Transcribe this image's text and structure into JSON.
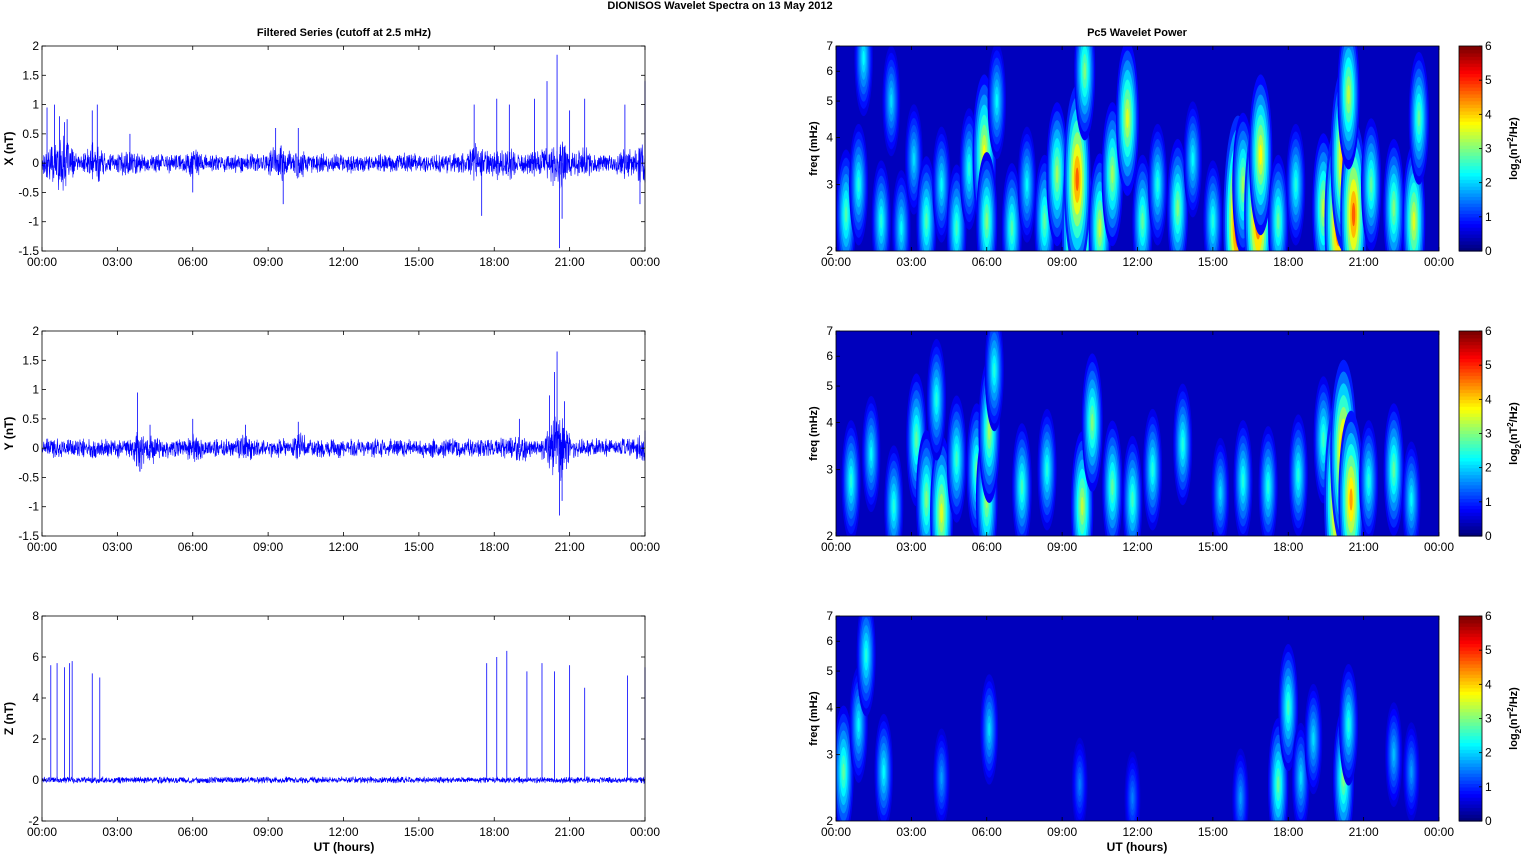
{
  "figure": {
    "title": "DIONISOS Wavelet Spectra on 13 May       2012",
    "left_title": "Filtered Series (cutoff at 2.5 mHz)",
    "right_title": "Pc5 Wavelet Power",
    "xlabel": "UT (hours)",
    "colors": {
      "trace": "#0000ff",
      "background": "#00008f",
      "axes": "#000000"
    }
  },
  "chart_data": [
    {
      "type": "line",
      "title": "",
      "ylabel": "X (nT)",
      "xlabel": "",
      "x_ticks": [
        "00:00",
        "03:00",
        "06:00",
        "09:00",
        "12:00",
        "15:00",
        "18:00",
        "21:00",
        "00:00"
      ],
      "x_range_hours": [
        0,
        24
      ],
      "ylim": [
        -1.5,
        2
      ],
      "y_ticks": [
        "-1.5",
        "-1",
        "-0.5",
        "0",
        "0.5",
        "1",
        "1.5",
        "2"
      ],
      "grid": false,
      "noise_amplitude": 0.12,
      "series": [
        {
          "x_hours": [
            0.2,
            0.5,
            0.7,
            0.9,
            1.0,
            2.0,
            2.2,
            3.5,
            6.0,
            9.3,
            9.6,
            10.2,
            17.5,
            17.2,
            18.1,
            18.6,
            19.6,
            20.1,
            20.5,
            20.6,
            20.7,
            21.0,
            21.6,
            23.2,
            23.8,
            24.0
          ],
          "values": [
            0.95,
            1.0,
            0.8,
            0.7,
            0.75,
            0.9,
            1.0,
            0.5,
            -0.5,
            0.6,
            -0.7,
            0.6,
            -0.9,
            1.0,
            1.1,
            1.0,
            1.1,
            1.4,
            1.85,
            -1.45,
            -0.95,
            0.9,
            1.1,
            1.0,
            -0.7,
            1.4
          ]
        }
      ]
    },
    {
      "type": "line",
      "title": "",
      "ylabel": "Y (nT)",
      "xlabel": "",
      "x_ticks": [
        "00:00",
        "03:00",
        "06:00",
        "09:00",
        "12:00",
        "15:00",
        "18:00",
        "21:00",
        "00:00"
      ],
      "x_range_hours": [
        0,
        24
      ],
      "ylim": [
        -1.5,
        2
      ],
      "y_ticks": [
        "-1.5",
        "-1",
        "-0.5",
        "0",
        "0.5",
        "1",
        "1.5",
        "2"
      ],
      "grid": false,
      "noise_amplitude": 0.12,
      "series": [
        {
          "x_hours": [
            3.8,
            3.9,
            4.3,
            6.0,
            8.1,
            10.2,
            19.0,
            20.2,
            20.4,
            20.5,
            20.6,
            20.7,
            20.8,
            24.0
          ],
          "values": [
            0.95,
            -0.4,
            0.4,
            0.5,
            0.4,
            0.45,
            0.5,
            0.9,
            1.3,
            1.65,
            -1.15,
            -0.9,
            0.8,
            0.3
          ]
        }
      ]
    },
    {
      "type": "line",
      "title": "",
      "ylabel": "Z (nT)",
      "xlabel": "UT (hours)",
      "x_ticks": [
        "00:00",
        "03:00",
        "06:00",
        "09:00",
        "12:00",
        "15:00",
        "18:00",
        "21:00",
        "00:00"
      ],
      "x_range_hours": [
        0,
        24
      ],
      "ylim": [
        -2,
        8
      ],
      "y_ticks": [
        "-2",
        "0",
        "2",
        "4",
        "6",
        "8"
      ],
      "grid": false,
      "noise_amplitude": 0.12,
      "series": [
        {
          "x_hours": [
            0.35,
            0.6,
            0.9,
            1.1,
            1.2,
            2.0,
            2.3,
            17.7,
            18.1,
            18.5,
            19.3,
            19.9,
            20.4,
            21.0,
            21.6,
            23.3,
            24.0
          ],
          "values": [
            5.6,
            5.7,
            5.5,
            5.7,
            5.8,
            5.2,
            5.0,
            5.7,
            6.0,
            6.3,
            5.3,
            5.7,
            5.3,
            5.6,
            4.5,
            5.1,
            5.5
          ]
        }
      ]
    },
    {
      "type": "heatmap",
      "title": "",
      "ylabel": "freq (mHz)",
      "xlabel": "",
      "x_ticks": [
        "00:00",
        "03:00",
        "06:00",
        "09:00",
        "12:00",
        "15:00",
        "18:00",
        "21:00",
        "00:00"
      ],
      "x_range_hours": [
        0,
        24
      ],
      "y_range_mHz": [
        2,
        7
      ],
      "y_scale": "log",
      "y_ticks": [
        "2",
        "3",
        "4",
        "5",
        "6",
        "7"
      ],
      "colorbar": {
        "label_base": "log",
        "label_sub": "2",
        "label_rest": "(nT",
        "label_sup": "2",
        "label_end": "/Hz)",
        "range": [
          0,
          6
        ],
        "ticks": [
          "0",
          "1",
          "2",
          "3",
          "4",
          "5",
          "6"
        ],
        "colormap": "jet"
      },
      "blobs_hours_mHz_power": [
        [
          0.4,
          2.5,
          2.5
        ],
        [
          0.9,
          3.0,
          2.2
        ],
        [
          1.1,
          6.5,
          2.0
        ],
        [
          1.8,
          2.4,
          2.2
        ],
        [
          2.2,
          5.0,
          1.8
        ],
        [
          2.6,
          2.3,
          2.0
        ],
        [
          3.1,
          3.5,
          1.8
        ],
        [
          3.6,
          2.4,
          2.5
        ],
        [
          4.2,
          3.0,
          2.0
        ],
        [
          4.8,
          2.3,
          2.4
        ],
        [
          5.3,
          3.3,
          2.2
        ],
        [
          5.9,
          3.6,
          3.6
        ],
        [
          6.0,
          2.4,
          2.8
        ],
        [
          6.4,
          5.0,
          2.0
        ],
        [
          7.0,
          2.3,
          2.5
        ],
        [
          7.6,
          3.0,
          2.0
        ],
        [
          8.3,
          2.4,
          2.6
        ],
        [
          8.8,
          3.2,
          3.0
        ],
        [
          9.6,
          2.3,
          5.7
        ],
        [
          9.6,
          3.1,
          4.6
        ],
        [
          9.9,
          6.0,
          2.8
        ],
        [
          10.5,
          2.3,
          3.2
        ],
        [
          11.0,
          3.2,
          3.0
        ],
        [
          11.6,
          4.5,
          3.4
        ],
        [
          12.2,
          2.4,
          2.6
        ],
        [
          12.8,
          3.0,
          2.2
        ],
        [
          13.6,
          2.6,
          2.8
        ],
        [
          14.2,
          3.5,
          2.0
        ],
        [
          15.0,
          2.4,
          2.2
        ],
        [
          16.0,
          2.4,
          5.4
        ],
        [
          16.2,
          3.0,
          3.0
        ],
        [
          16.8,
          2.5,
          5.0
        ],
        [
          16.9,
          3.6,
          3.6
        ],
        [
          17.6,
          2.4,
          2.6
        ],
        [
          18.3,
          3.0,
          2.2
        ],
        [
          19.4,
          2.6,
          3.2
        ],
        [
          20.0,
          2.4,
          5.0
        ],
        [
          20.2,
          3.5,
          4.4
        ],
        [
          20.6,
          2.5,
          4.6
        ],
        [
          20.4,
          5.2,
          3.2
        ],
        [
          21.3,
          3.0,
          2.6
        ],
        [
          22.2,
          2.6,
          2.8
        ],
        [
          23.0,
          2.4,
          3.4
        ],
        [
          23.2,
          4.5,
          2.6
        ]
      ]
    },
    {
      "type": "heatmap",
      "title": "",
      "ylabel": "freq (mHz)",
      "xlabel": "",
      "x_ticks": [
        "00:00",
        "03:00",
        "06:00",
        "09:00",
        "12:00",
        "15:00",
        "18:00",
        "21:00",
        "00:00"
      ],
      "x_range_hours": [
        0,
        24
      ],
      "y_range_mHz": [
        2,
        7
      ],
      "y_scale": "log",
      "y_ticks": [
        "2",
        "3",
        "4",
        "5",
        "6",
        "7"
      ],
      "colorbar": {
        "label_base": "log",
        "label_sub": "2",
        "label_rest": "(nT",
        "label_sup": "2",
        "label_end": "/Hz)",
        "range": [
          0,
          6
        ],
        "ticks": [
          "0",
          "1",
          "2",
          "3",
          "4",
          "5",
          "6"
        ],
        "colormap": "jet"
      },
      "blobs_hours_mHz_power": [
        [
          0.6,
          2.8,
          2.2
        ],
        [
          1.4,
          3.3,
          2.0
        ],
        [
          2.3,
          2.4,
          2.2
        ],
        [
          3.2,
          3.6,
          2.6
        ],
        [
          3.6,
          2.5,
          2.8
        ],
        [
          4.2,
          2.3,
          3.4
        ],
        [
          4.0,
          4.6,
          2.2
        ],
        [
          4.8,
          3.2,
          2.4
        ],
        [
          5.6,
          3.0,
          2.6
        ],
        [
          6.0,
          2.5,
          3.0
        ],
        [
          6.1,
          3.8,
          3.0
        ],
        [
          6.3,
          5.5,
          2.2
        ],
        [
          7.4,
          2.7,
          2.4
        ],
        [
          8.4,
          3.0,
          2.2
        ],
        [
          9.8,
          2.4,
          3.2
        ],
        [
          10.2,
          4.0,
          2.8
        ],
        [
          11.0,
          2.7,
          2.6
        ],
        [
          11.8,
          2.5,
          2.4
        ],
        [
          12.6,
          3.0,
          2.2
        ],
        [
          13.8,
          3.5,
          2.2
        ],
        [
          15.3,
          2.6,
          1.8
        ],
        [
          16.2,
          2.8,
          2.2
        ],
        [
          17.2,
          2.7,
          2.2
        ],
        [
          18.4,
          2.9,
          2.2
        ],
        [
          19.4,
          3.6,
          2.4
        ],
        [
          20.0,
          2.5,
          5.2
        ],
        [
          20.2,
          3.3,
          4.6
        ],
        [
          20.5,
          2.5,
          4.2
        ],
        [
          21.2,
          2.8,
          2.2
        ],
        [
          22.2,
          3.0,
          2.6
        ],
        [
          22.9,
          2.5,
          2.0
        ]
      ]
    },
    {
      "type": "heatmap",
      "title": "",
      "ylabel": "freq (mHz)",
      "xlabel": "UT (hours)",
      "x_ticks": [
        "00:00",
        "03:00",
        "06:00",
        "09:00",
        "12:00",
        "15:00",
        "18:00",
        "21:00",
        "00:00"
      ],
      "x_range_hours": [
        0,
        24
      ],
      "y_range_mHz": [
        2,
        7
      ],
      "y_scale": "log",
      "y_ticks": [
        "2",
        "3",
        "4",
        "5",
        "6",
        "7"
      ],
      "colorbar": {
        "label_base": "log",
        "label_sub": "2",
        "label_rest": "(nT",
        "label_sup": "2",
        "label_end": "/Hz)",
        "range": [
          0,
          6
        ],
        "ticks": [
          "0",
          "1",
          "2",
          "3",
          "4",
          "5",
          "6"
        ],
        "colormap": "jet"
      },
      "blobs_hours_mHz_power": [
        [
          0.3,
          2.7,
          2.6
        ],
        [
          0.9,
          3.6,
          2.0
        ],
        [
          1.2,
          5.5,
          2.2
        ],
        [
          1.9,
          2.7,
          2.0
        ],
        [
          4.2,
          2.6,
          1.4
        ],
        [
          6.1,
          3.5,
          1.8
        ],
        [
          9.7,
          2.5,
          1.2
        ],
        [
          11.8,
          2.3,
          1.2
        ],
        [
          16.1,
          2.3,
          1.4
        ],
        [
          17.6,
          2.5,
          2.6
        ],
        [
          18.0,
          4.0,
          2.4
        ],
        [
          18.5,
          2.6,
          1.8
        ],
        [
          19.0,
          3.3,
          1.8
        ],
        [
          20.2,
          2.6,
          2.8
        ],
        [
          20.4,
          3.6,
          2.2
        ],
        [
          22.2,
          3.0,
          1.6
        ],
        [
          22.9,
          2.7,
          1.4
        ]
      ]
    }
  ]
}
